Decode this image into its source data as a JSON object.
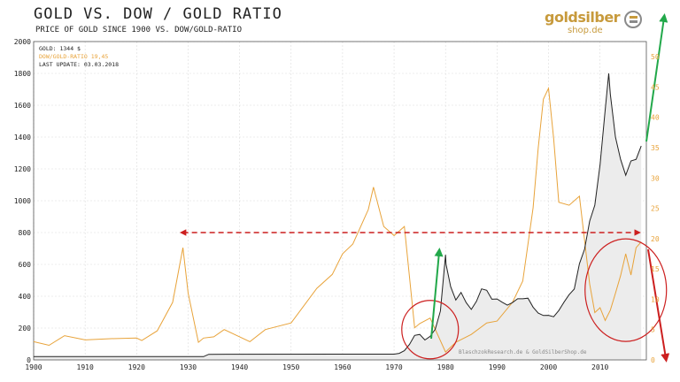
{
  "header": {
    "title": "GOLD VS. DOW / GOLD  RATIO",
    "subtitle": "PRICE OF GOLD SINCE 1900 VS. DOW/GOLD-RATIO"
  },
  "logo": {
    "main": "goldsilber",
    "sub": "shop.de"
  },
  "legend": {
    "gold": "GOLD: 1344 $",
    "ratio": "DOW/GOLD-RATIO 19,45",
    "update": "LAST UPDATE: 03.03.2018"
  },
  "credit": "BlaschzokResearch.de & GoldSilberShop.de",
  "colors": {
    "gold": "#222222",
    "ratio": "#e8a33a",
    "area": "#ececec",
    "arrow_up": "#22a84a",
    "arrow_red": "#cc1f1f",
    "grid": "#dcdcdc",
    "right_axis": "#e8a33a"
  },
  "chart_data": {
    "type": "line",
    "xlim": [
      1900,
      2019
    ],
    "ylim_left": [
      0,
      2000
    ],
    "ylim_right": [
      0,
      52.5
    ],
    "x_ticks": [
      1900,
      1910,
      1920,
      1930,
      1940,
      1950,
      1960,
      1970,
      1980,
      1990,
      2000,
      2010
    ],
    "y_ticks_left": [
      0,
      200,
      400,
      600,
      800,
      1000,
      1200,
      1400,
      1600,
      1800,
      2000
    ],
    "y_ticks_right": [
      0,
      5,
      10,
      15,
      20,
      25,
      30,
      35,
      40,
      45,
      50
    ],
    "grid": true,
    "series": [
      {
        "name": "GOLD",
        "axis": "left",
        "x": [
          1900,
          1933,
          1934,
          1970,
          1971,
          1972,
          1973,
          1974,
          1975,
          1976,
          1977,
          1978,
          1979,
          1980,
          1980.1,
          1981,
          1982,
          1983,
          1984,
          1985,
          1986,
          1987,
          1988,
          1989,
          1990,
          1991,
          1992,
          1993,
          1994,
          1995,
          1996,
          1997,
          1998,
          1999,
          2000,
          2001,
          2002,
          2003,
          2004,
          2005,
          2006,
          2007,
          2008,
          2009,
          2010,
          2011,
          2011.7,
          2012,
          2013,
          2014,
          2015,
          2016,
          2017,
          2018
        ],
        "values": [
          20.67,
          20.67,
          35,
          36,
          41,
          58,
          97,
          154,
          160,
          125,
          148,
          193,
          307,
          660,
          600,
          460,
          376,
          424,
          360,
          317,
          368,
          446,
          437,
          381,
          383,
          362,
          344,
          360,
          384,
          384,
          388,
          331,
          294,
          279,
          280,
          271,
          310,
          363,
          410,
          445,
          604,
          695,
          872,
          972,
          1225,
          1570,
          1800,
          1670,
          1400,
          1260,
          1160,
          1250,
          1260,
          1344
        ]
      },
      {
        "name": "DOW/GOLD-RATIO",
        "axis": "right",
        "x": [
          1900,
          1903,
          1906,
          1910,
          1915,
          1920,
          1921,
          1924,
          1927,
          1929,
          1930,
          1932,
          1933,
          1935,
          1937,
          1940,
          1942,
          1945,
          1950,
          1955,
          1958,
          1960,
          1962,
          1965,
          1966,
          1968,
          1970,
          1972,
          1974,
          1975,
          1977,
          1980,
          1982,
          1985,
          1988,
          1990,
          1993,
          1995,
          1997,
          1998,
          1999,
          2000,
          2001,
          2002,
          2004,
          2006,
          2008,
          2009,
          2010,
          2011,
          2012,
          2013,
          2014,
          2015,
          2016,
          2017,
          2018
        ],
        "values": [
          3.0,
          2.4,
          4.0,
          3.3,
          3.5,
          3.6,
          3.2,
          4.8,
          9.5,
          18.5,
          11,
          2.9,
          3.6,
          3.8,
          5.0,
          3.8,
          3.0,
          5.0,
          6.1,
          11.8,
          14.1,
          17.5,
          19.1,
          24.8,
          28.5,
          22.0,
          20.5,
          22.0,
          5.3,
          6.0,
          6.9,
          1.3,
          2.9,
          4.2,
          6.1,
          6.4,
          9.5,
          13.0,
          25.1,
          35.0,
          43.0,
          44.8,
          36.5,
          26.0,
          25.5,
          27.0,
          12.5,
          7.8,
          8.6,
          6.5,
          8.2,
          11.0,
          13.9,
          17.5,
          14.0,
          18.5,
          19.45
        ]
      }
    ],
    "annotations": [
      {
        "type": "dashed-arrow",
        "from": [
          1929,
          21.0
        ],
        "to": [
          2017.3,
          21.0
        ]
      },
      {
        "type": "circle",
        "center": [
          1977,
          5.0
        ]
      },
      {
        "type": "circle",
        "center": [
          2015,
          11.5
        ]
      }
    ]
  }
}
